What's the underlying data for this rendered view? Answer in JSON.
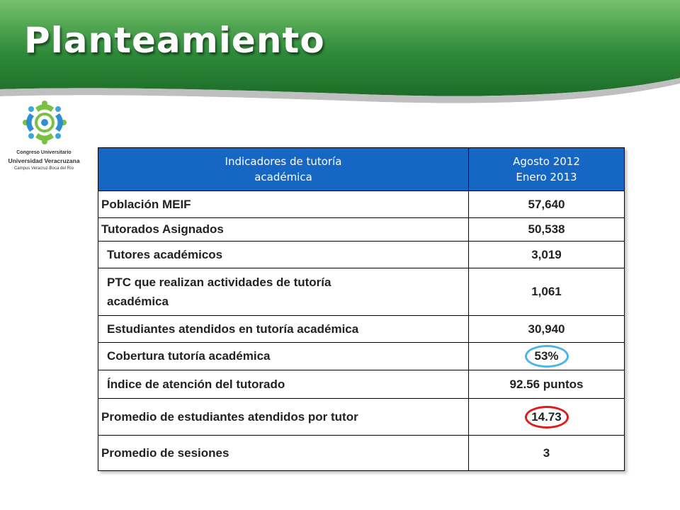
{
  "slide": {
    "title": "Planteamiento",
    "colors": {
      "banner_green": "#2e8b3a",
      "header_blue": "#1667c4",
      "circle_blue": "#4ab5e6",
      "circle_red": "#e01b1b"
    }
  },
  "logo": {
    "line1": "Congreso Universitario",
    "line2": "Universidad Veracruzana",
    "line3": "Campus Veracruz-Boca del Río"
  },
  "table": {
    "header": {
      "indicator_line1": "Indicadores de tutoría",
      "indicator_line2": "académica",
      "period_line1": "Agosto 2012",
      "period_line2": "Enero 2013"
    },
    "rows": [
      {
        "label": "Población MEIF",
        "value": "57,640"
      },
      {
        "label": "Tutorados Asignados",
        "value": "50,538"
      },
      {
        "label": "Tutores académicos",
        "value": "3,019"
      },
      {
        "label_line1": "PTC que realizan actividades de tutoría",
        "label_line2": "académica",
        "value": "1,061"
      },
      {
        "label": "Estudiantes atendidos en tutoría académica",
        "value": "30,940"
      },
      {
        "label": "Cobertura tutoría académica",
        "value": "53%",
        "highlight": "blue"
      },
      {
        "label": "Índice de atención del tutorado",
        "value": "92.56 puntos"
      },
      {
        "label": "Promedio de estudiantes atendidos por tutor",
        "value": "14.73",
        "highlight": "red"
      },
      {
        "label": "Promedio de sesiones",
        "value": "3"
      }
    ]
  }
}
